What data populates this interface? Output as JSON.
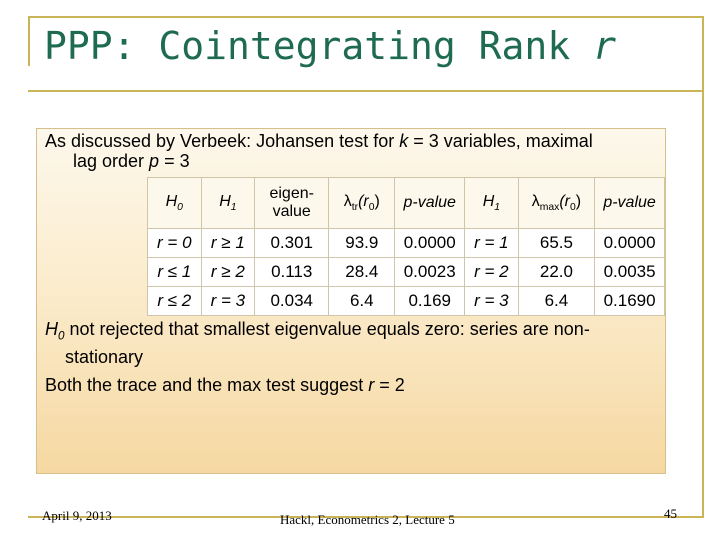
{
  "slide": {
    "title_prefix": "PPP: Cointegrating Rank ",
    "title_var": "r",
    "intro": {
      "part1": "As discussed by Verbeek: Johansen test for ",
      "k": "k",
      "part2": " = 3 variables, maximal",
      "part3": "lag order ",
      "p": "p",
      "part4": " = 3"
    },
    "table": {
      "headers": {
        "h0": "H",
        "h0_sub": "0",
        "h1": "H",
        "h1_sub": "1",
        "eigen": "eigen-value",
        "lambda_tr": "λ",
        "lambda_tr_sub": "tr",
        "lambda_tr_arg": "(r",
        "lambda_tr_arg_sub": "0",
        "lambda_tr_close": ")",
        "pvalue1": "p-value",
        "h1b": "H",
        "h1b_sub": "1",
        "lambda_max": "λ",
        "lambda_max_sub": "max",
        "lambda_max_arg": "(r",
        "lambda_max_arg_sub": "0",
        "lambda_max_close": ")",
        "pvalue2": "p-value"
      },
      "rows": [
        {
          "h0": "r = 0",
          "h1": "r ≥ 1",
          "eigen": "0.301",
          "lambda_tr": "93.9",
          "p1": "0.0000",
          "h1b": "r = 1",
          "lambda_max": "65.5",
          "p2": "0.0000"
        },
        {
          "h0": "r ≤ 1",
          "h1": "r ≥ 2",
          "eigen": "0.113",
          "lambda_tr": "28.4",
          "p1": "0.0023",
          "h1b": "r = 2",
          "lambda_max": "22.0",
          "p2": "0.0035"
        },
        {
          "h0": "r ≤ 2",
          "h1": "r = 3",
          "eigen": "0.034",
          "lambda_tr": "6.4",
          "p1": "0.169",
          "h1b": "r = 3",
          "lambda_max": "6.4",
          "p2": "0.1690"
        }
      ]
    },
    "conclusion": {
      "h": "H",
      "h_sub": "0",
      "line1": " not rejected that smallest eigenvalue equals zero: series are non-",
      "line2": "stationary",
      "line3_part1": "Both the trace and the max test suggest ",
      "line3_r": "r",
      "line3_part2": " = 2"
    },
    "footer": {
      "date": "April 9, 2013",
      "course": "Hackl, Econometrics 2, Lecture 5",
      "page": "45"
    },
    "colors": {
      "title": "#1e6b52",
      "frame": "#c9b458",
      "box_top": "#fdf8ec",
      "box_bottom": "#f6d8a2"
    }
  }
}
